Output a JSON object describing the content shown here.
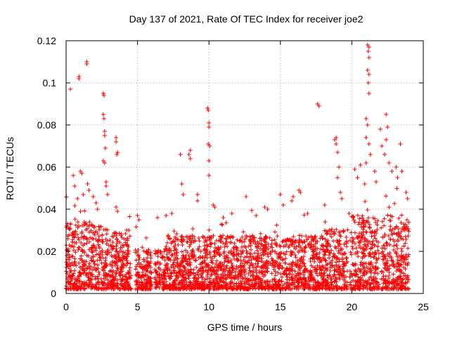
{
  "chart_data": {
    "type": "scatter",
    "marker": "plus",
    "title": "Day 137 of 2021, Rate Of TEC Index for receiver joe2",
    "xlabel": "GPS time / hours",
    "ylabel": "ROTI / TECUs",
    "xlim": [
      0,
      25
    ],
    "ylim": [
      0,
      0.12
    ],
    "xticks": [
      0,
      5,
      10,
      15,
      20,
      25
    ],
    "xtick_labels": [
      "0",
      "5",
      "10",
      "15",
      "20",
      "25"
    ],
    "yticks": [
      0,
      0.02,
      0.04,
      0.06,
      0.08,
      0.1,
      0.12
    ],
    "ytick_labels": [
      "0",
      "0.02",
      "0.04",
      "0.06",
      "0.08",
      "0.1",
      "0.12"
    ],
    "grid": true,
    "colors": {
      "points": "#ff0000",
      "grid": "#a0a0a0",
      "axes": "#000000"
    },
    "series": [
      {
        "name": "ROTI",
        "points": [
          {
            "x": 0.3,
            "y": 0.097
          },
          {
            "x": 0.5,
            "y": 0.056
          },
          {
            "x": 0.6,
            "y": 0.051
          },
          {
            "x": 0.8,
            "y": 0.045
          },
          {
            "x": 0.9,
            "y": 0.103
          },
          {
            "x": 0.9,
            "y": 0.102
          },
          {
            "x": 1.0,
            "y": 0.058
          },
          {
            "x": 1.1,
            "y": 0.057
          },
          {
            "x": 1.2,
            "y": 0.047
          },
          {
            "x": 1.45,
            "y": 0.11
          },
          {
            "x": 1.45,
            "y": 0.109
          },
          {
            "x": 1.5,
            "y": 0.052
          },
          {
            "x": 1.6,
            "y": 0.049
          },
          {
            "x": 1.9,
            "y": 0.046
          },
          {
            "x": 2.1,
            "y": 0.043
          },
          {
            "x": 2.2,
            "y": 0.04
          },
          {
            "x": 2.6,
            "y": 0.095
          },
          {
            "x": 2.65,
            "y": 0.094
          },
          {
            "x": 2.6,
            "y": 0.085
          },
          {
            "x": 2.65,
            "y": 0.083
          },
          {
            "x": 2.7,
            "y": 0.077
          },
          {
            "x": 2.7,
            "y": 0.075
          },
          {
            "x": 2.75,
            "y": 0.069
          },
          {
            "x": 2.6,
            "y": 0.063
          },
          {
            "x": 2.7,
            "y": 0.062
          },
          {
            "x": 2.8,
            "y": 0.053
          },
          {
            "x": 2.8,
            "y": 0.051
          },
          {
            "x": 2.9,
            "y": 0.047
          },
          {
            "x": 3.5,
            "y": 0.074
          },
          {
            "x": 3.5,
            "y": 0.072
          },
          {
            "x": 3.6,
            "y": 0.067
          },
          {
            "x": 3.55,
            "y": 0.066
          },
          {
            "x": 3.5,
            "y": 0.041
          },
          {
            "x": 3.6,
            "y": 0.039
          },
          {
            "x": 4.4,
            "y": 0.03
          },
          {
            "x": 5.0,
            "y": 0.037
          },
          {
            "x": 5.1,
            "y": 0.035
          },
          {
            "x": 6.4,
            "y": 0.036
          },
          {
            "x": 7.0,
            "y": 0.037
          },
          {
            "x": 7.4,
            "y": 0.038
          },
          {
            "x": 8.0,
            "y": 0.066
          },
          {
            "x": 8.1,
            "y": 0.052
          },
          {
            "x": 8.2,
            "y": 0.047
          },
          {
            "x": 8.6,
            "y": 0.066
          },
          {
            "x": 8.7,
            "y": 0.068
          },
          {
            "x": 8.7,
            "y": 0.064
          },
          {
            "x": 9.2,
            "y": 0.047
          },
          {
            "x": 9.2,
            "y": 0.044
          },
          {
            "x": 9.9,
            "y": 0.088
          },
          {
            "x": 9.95,
            "y": 0.087
          },
          {
            "x": 10.0,
            "y": 0.081
          },
          {
            "x": 10.0,
            "y": 0.079
          },
          {
            "x": 9.95,
            "y": 0.071
          },
          {
            "x": 10.05,
            "y": 0.07
          },
          {
            "x": 10.0,
            "y": 0.063
          },
          {
            "x": 10.0,
            "y": 0.056
          },
          {
            "x": 10.3,
            "y": 0.042
          },
          {
            "x": 10.4,
            "y": 0.041
          },
          {
            "x": 11.0,
            "y": 0.036
          },
          {
            "x": 11.6,
            "y": 0.038
          },
          {
            "x": 12.6,
            "y": 0.046
          },
          {
            "x": 13.3,
            "y": 0.037
          },
          {
            "x": 13.9,
            "y": 0.041
          },
          {
            "x": 14.1,
            "y": 0.04
          },
          {
            "x": 15.0,
            "y": 0.047
          },
          {
            "x": 15.2,
            "y": 0.042
          },
          {
            "x": 15.9,
            "y": 0.046
          },
          {
            "x": 15.8,
            "y": 0.044
          },
          {
            "x": 16.3,
            "y": 0.049
          },
          {
            "x": 16.4,
            "y": 0.048
          },
          {
            "x": 16.9,
            "y": 0.038
          },
          {
            "x": 17.6,
            "y": 0.09
          },
          {
            "x": 17.7,
            "y": 0.089
          },
          {
            "x": 18.1,
            "y": 0.042
          },
          {
            "x": 18.8,
            "y": 0.073
          },
          {
            "x": 18.9,
            "y": 0.074
          },
          {
            "x": 18.9,
            "y": 0.071
          },
          {
            "x": 19.0,
            "y": 0.067
          },
          {
            "x": 19.1,
            "y": 0.06
          },
          {
            "x": 19.0,
            "y": 0.055
          },
          {
            "x": 19.2,
            "y": 0.048
          },
          {
            "x": 19.3,
            "y": 0.045
          },
          {
            "x": 19.8,
            "y": 0.038
          },
          {
            "x": 20.2,
            "y": 0.059
          },
          {
            "x": 20.4,
            "y": 0.055
          },
          {
            "x": 20.6,
            "y": 0.061
          },
          {
            "x": 20.9,
            "y": 0.052
          },
          {
            "x": 21.0,
            "y": 0.062
          },
          {
            "x": 21.1,
            "y": 0.118
          },
          {
            "x": 21.2,
            "y": 0.117
          },
          {
            "x": 21.15,
            "y": 0.115
          },
          {
            "x": 21.2,
            "y": 0.112
          },
          {
            "x": 21.1,
            "y": 0.106
          },
          {
            "x": 21.2,
            "y": 0.104
          },
          {
            "x": 21.15,
            "y": 0.1
          },
          {
            "x": 21.2,
            "y": 0.095
          },
          {
            "x": 21.0,
            "y": 0.083
          },
          {
            "x": 21.1,
            "y": 0.08
          },
          {
            "x": 21.0,
            "y": 0.074
          },
          {
            "x": 21.2,
            "y": 0.071
          },
          {
            "x": 21.3,
            "y": 0.066
          },
          {
            "x": 21.6,
            "y": 0.058
          },
          {
            "x": 21.7,
            "y": 0.053
          },
          {
            "x": 22.0,
            "y": 0.078
          },
          {
            "x": 22.1,
            "y": 0.07
          },
          {
            "x": 22.4,
            "y": 0.085
          },
          {
            "x": 22.5,
            "y": 0.079
          },
          {
            "x": 22.4,
            "y": 0.073
          },
          {
            "x": 22.3,
            "y": 0.066
          },
          {
            "x": 22.6,
            "y": 0.062
          },
          {
            "x": 22.8,
            "y": 0.058
          },
          {
            "x": 23.1,
            "y": 0.06
          },
          {
            "x": 23.2,
            "y": 0.055
          },
          {
            "x": 23.4,
            "y": 0.071
          },
          {
            "x": 23.5,
            "y": 0.058
          },
          {
            "x": 23.8,
            "y": 0.048
          },
          {
            "x": 23.9,
            "y": 0.045
          }
        ]
      }
    ]
  }
}
